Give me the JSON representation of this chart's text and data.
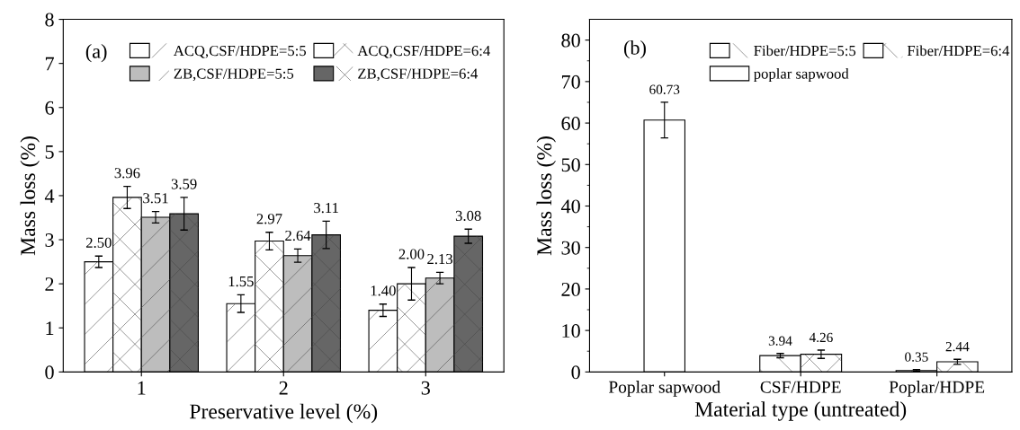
{
  "chart_data": [
    {
      "type": "bar",
      "xlabel": "Preservative level (%)",
      "ylabel": "Mass loss (%)",
      "annotations": [
        "(a)"
      ],
      "categories": [
        "1",
        "2",
        "3"
      ],
      "ylim": [
        0,
        8
      ],
      "yticks": [
        0,
        1,
        2,
        3,
        4,
        5,
        6,
        7,
        8
      ],
      "legend": "top right",
      "series": [
        {
          "name": "ACQ,CSF/HDPE=5:5",
          "color": "#ffffff",
          "values": [
            2.5,
            1.55,
            1.4
          ],
          "value_labels": [
            "2.50",
            "1.55",
            "1.40"
          ],
          "errors": [
            0.13,
            0.2,
            0.14
          ]
        },
        {
          "name": "ACQ,CSF/HDPE=6:4",
          "color": "#ffffff",
          "values": [
            3.96,
            2.97,
            2.0
          ],
          "value_labels": [
            "3.96",
            "2.97",
            "2.00"
          ],
          "errors": [
            0.25,
            0.2,
            0.37
          ]
        },
        {
          "name": "ZB,CSF/HDPE=5:5",
          "color": "#bdbdbd",
          "values": [
            3.51,
            2.64,
            2.13
          ],
          "value_labels": [
            "3.51",
            "2.64",
            "2.13"
          ],
          "errors": [
            0.13,
            0.15,
            0.13
          ]
        },
        {
          "name": "ZB,CSF/HDPE=6:4",
          "color": "#666666",
          "values": [
            3.59,
            3.11,
            3.08
          ],
          "value_labels": [
            "3.59",
            "3.11",
            "3.08"
          ],
          "errors": [
            0.37,
            0.31,
            0.16
          ]
        }
      ]
    },
    {
      "type": "bar",
      "xlabel": "Material type (untreated)",
      "ylabel": "Mass loss (%)",
      "annotations": [
        "(b)"
      ],
      "categories": [
        "Poplar sapwood",
        "CSF/HDPE",
        "Poplar/HDPE"
      ],
      "ylim": [
        0,
        85
      ],
      "yticks": [
        0,
        10,
        20,
        30,
        40,
        50,
        60,
        70,
        80
      ],
      "legend": "top",
      "series": [
        {
          "name": "Fiber/HDPE=5:5",
          "color": "#ffffff",
          "values": [
            null,
            3.94,
            0.35
          ],
          "value_labels": [
            null,
            "3.94",
            "0.35"
          ],
          "errors": [
            null,
            0.5,
            0.2
          ]
        },
        {
          "name": "Fiber/HDPE=6:4",
          "color": "#ffffff",
          "values": [
            null,
            4.26,
            2.44
          ],
          "value_labels": [
            null,
            "4.26",
            "2.44"
          ],
          "errors": [
            null,
            1.0,
            0.6
          ]
        },
        {
          "name": "poplar sapwood",
          "color": "#ffffff",
          "values": [
            60.73,
            null,
            null
          ],
          "value_labels": [
            "60.73",
            null,
            null
          ],
          "errors": [
            4.3,
            null,
            null
          ]
        }
      ]
    }
  ]
}
